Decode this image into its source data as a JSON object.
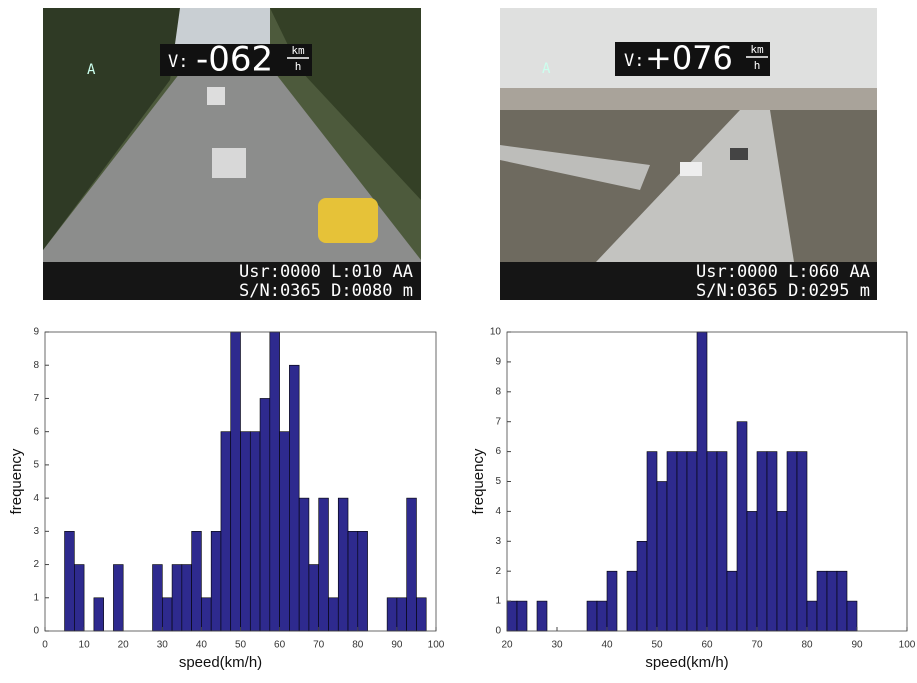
{
  "images": [
    {
      "speed_prefix": "V:",
      "speed": "-062",
      "unit_top": "km",
      "unit_bottom": "h",
      "lane": "A",
      "line1": "Usr:0000 L:010 AA",
      "line2": "S/N:0365 D:0080 m"
    },
    {
      "speed_prefix": "V:",
      "speed": "+076",
      "unit_top": "km",
      "unit_bottom": "h",
      "lane": "A",
      "line1": "Usr:0000 L:060 AA",
      "line2": "S/N:0365 D:0295 m"
    }
  ],
  "chart_data": [
    {
      "type": "histogram",
      "xlabel": "speed(km/h)",
      "ylabel": "frequency",
      "color": "#2e2a8e",
      "bins": [
        5,
        7.5,
        10,
        12.5,
        15,
        17.5,
        20,
        22.5,
        25,
        27.5,
        30,
        32.5,
        35,
        37.5,
        40,
        42.5,
        45,
        47.5,
        50,
        52.5,
        55,
        57.5,
        60,
        62.5,
        65,
        67.5,
        70,
        72.5,
        75,
        77.5,
        80,
        82.5,
        85,
        87.5,
        90,
        92.5,
        95,
        97.5
      ],
      "values": [
        3,
        2,
        0,
        1,
        0,
        2,
        0,
        0,
        0,
        2,
        1,
        2,
        2,
        3,
        1,
        3,
        6,
        9,
        6,
        6,
        7,
        9,
        6,
        8,
        4,
        2,
        4,
        1,
        4,
        3,
        3,
        0,
        0,
        1,
        1,
        4,
        1
      ],
      "xlim": [
        0,
        100
      ],
      "xticks": [
        0,
        10,
        20,
        30,
        40,
        50,
        60,
        70,
        80,
        90,
        100
      ],
      "ylim": [
        0,
        9
      ],
      "yticks": [
        0,
        1,
        2,
        3,
        4,
        5,
        6,
        7,
        8,
        9
      ]
    },
    {
      "type": "histogram",
      "xlabel": "speed(km/h)",
      "ylabel": "frequency",
      "color": "#2e2a8e",
      "bins": [
        20,
        22,
        24,
        26,
        28,
        30,
        32,
        34,
        36,
        38,
        40,
        42,
        44,
        46,
        48,
        50,
        52,
        54,
        56,
        58,
        60,
        62,
        64,
        66,
        68,
        70,
        72,
        74,
        76,
        78,
        80,
        82,
        84,
        86,
        88,
        90
      ],
      "values": [
        1,
        1,
        0,
        1,
        0,
        0,
        0,
        0,
        1,
        1,
        2,
        0,
        2,
        3,
        6,
        5,
        6,
        6,
        6,
        10,
        6,
        6,
        2,
        7,
        4,
        6,
        6,
        4,
        6,
        6,
        1,
        2,
        2,
        2,
        1
      ],
      "xlim": [
        20,
        100
      ],
      "xticks": [
        20,
        30,
        40,
        50,
        60,
        70,
        80,
        90,
        100
      ],
      "ylim": [
        0,
        10
      ],
      "yticks": [
        0,
        1,
        2,
        3,
        4,
        5,
        6,
        7,
        8,
        9,
        10
      ]
    }
  ]
}
